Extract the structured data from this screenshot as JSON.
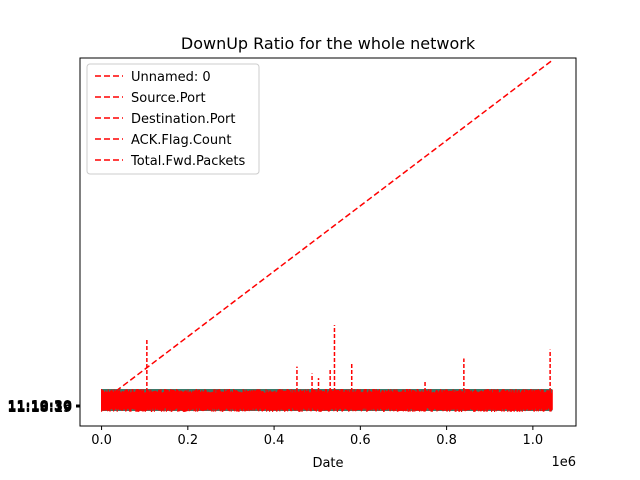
{
  "chart_data": {
    "type": "line",
    "title": "DownUp Ratio for the whole network",
    "xlabel": "Date",
    "ylabel": "",
    "x_offset_text": "1e6",
    "xlim": [
      -0.05,
      1.1
    ],
    "x_ticks": [
      0.0,
      0.2,
      0.4,
      0.6,
      0.8,
      1.0
    ],
    "x_tick_labels": [
      "0.0",
      "0.2",
      "0.4",
      "0.6",
      "0.8",
      "1.0"
    ],
    "y_tick_labels": [
      "11:10:30",
      "11:16:36",
      "11:18:19"
    ],
    "legend_position": "upper-left",
    "grid": false,
    "series": [
      {
        "name": "Unnamed: 0",
        "color": "#ff0000",
        "style": "dashed",
        "x": [
          0.0,
          1.045
        ],
        "y": [
          0.0,
          1.045
        ]
      },
      {
        "name": "Source.Port",
        "color": "#ff0000",
        "style": "dashed"
      },
      {
        "name": "Destination.Port",
        "color": "#ff0000",
        "style": "dashed"
      },
      {
        "name": "ACK.Flag.Count",
        "color": "#ff0000",
        "style": "dashed"
      },
      {
        "name": "Total.Fwd.Packets",
        "color": "#ff0000",
        "style": "dashed"
      }
    ],
    "noise_color": "#ff0000",
    "spikes": [
      {
        "x": 0.105,
        "y": 0.195
      },
      {
        "x": 0.453,
        "y": 0.108
      },
      {
        "x": 0.488,
        "y": 0.087
      },
      {
        "x": 0.503,
        "y": 0.073
      },
      {
        "x": 0.53,
        "y": 0.098
      },
      {
        "x": 0.54,
        "y": 0.235
      },
      {
        "x": 0.58,
        "y": 0.12
      },
      {
        "x": 0.75,
        "y": 0.065
      },
      {
        "x": 0.84,
        "y": 0.133
      },
      {
        "x": 1.04,
        "y": 0.16
      }
    ]
  }
}
